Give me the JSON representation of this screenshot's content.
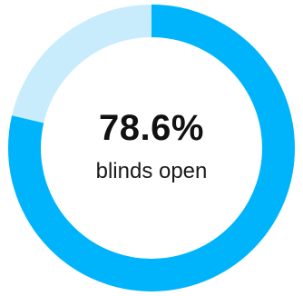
{
  "gauge": {
    "value_text": "78.6%",
    "label": "blinds open",
    "fraction_open": 0.786,
    "colors": {
      "filled": "#00b4fb",
      "remaining": "#c9ecfd",
      "text": "#111111"
    }
  }
}
